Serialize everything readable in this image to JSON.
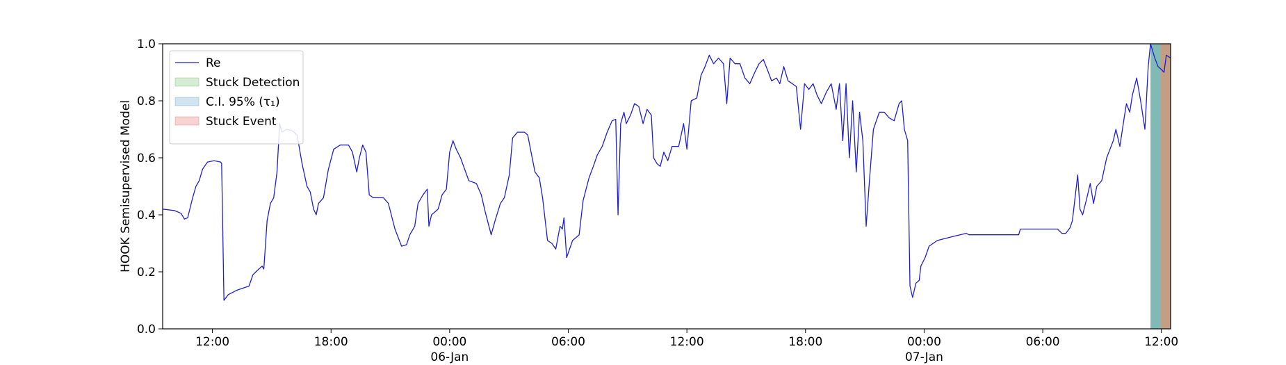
{
  "chart_data": {
    "type": "line",
    "ylabel": "HOOK Semisupervised Model",
    "xlim": [
      "1900-01-05 09:29",
      "1900-01-07 12:28"
    ],
    "xticks": [
      {
        "value": "1900-01-05 12:00",
        "label": "12:00"
      },
      {
        "value": "1900-01-05 18:00",
        "label": "18:00"
      },
      {
        "value": "1900-01-06 00:00",
        "label": "00:00\n06-Jan\n1900"
      },
      {
        "value": "1900-01-06 06:00",
        "label": "06:00"
      },
      {
        "value": "1900-01-06 12:00",
        "label": "12:00"
      },
      {
        "value": "1900-01-06 18:00",
        "label": "18:00"
      },
      {
        "value": "1900-01-07 00:00",
        "label": "00:00\n07-Jan"
      },
      {
        "value": "1900-01-07 06:00",
        "label": "06:00"
      },
      {
        "value": "1900-01-07 12:00",
        "label": "12:00"
      }
    ],
    "ylim": [
      0,
      1
    ],
    "yticks": [
      {
        "value": 0,
        "label": "0.0"
      },
      0.2,
      0.4,
      0.6,
      0.8,
      {
        "value": 1,
        "label": "1.0"
      }
    ],
    "grid": false,
    "legend": "upper left",
    "series": [
      {
        "name": "Re",
        "color": "#1f1fd0",
        "x": [
          "1900-01-05 09:29",
          "1900-01-05 10:05",
          "1900-01-05 10:25",
          "1900-01-05 10:35",
          "1900-01-05 10:45",
          "1900-01-05 11:00",
          "1900-01-05 11:10",
          "1900-01-05 11:20",
          "1900-01-05 11:30",
          "1900-01-05 11:45",
          "1900-01-05 12:05",
          "1900-01-05 12:25",
          "1900-01-05 12:28",
          "1900-01-05 12:35",
          "1900-01-05 12:48",
          "1900-01-05 13:13",
          "1900-01-05 13:51",
          "1900-01-05 14:03",
          "1900-01-05 14:21",
          "1900-01-05 14:31",
          "1900-01-05 14:36",
          "1900-01-05 14:46",
          "1900-01-05 14:56",
          "1900-01-05 15:06",
          "1900-01-05 15:16",
          "1900-01-05 15:24",
          "1900-01-05 15:31",
          "1900-01-05 15:44",
          "1900-01-05 16:02",
          "1900-01-05 16:17",
          "1900-01-05 16:32",
          "1900-01-05 16:47",
          "1900-01-05 16:57",
          "1900-01-05 17:07",
          "1900-01-05 17:15",
          "1900-01-05 17:22",
          "1900-01-05 17:37",
          "1900-01-05 17:52",
          "1900-01-05 18:08",
          "1900-01-05 18:28",
          "1900-01-05 18:53",
          "1900-01-05 19:05",
          "1900-01-05 19:18",
          "1900-01-05 19:26",
          "1900-01-05 19:36",
          "1900-01-05 19:46",
          "1900-01-05 19:56",
          "1900-01-05 20:08",
          "1900-01-05 20:39",
          "1900-01-05 20:54",
          "1900-01-05 21:14",
          "1900-01-05 21:34",
          "1900-01-05 21:49",
          "1900-01-05 21:59",
          "1900-01-05 22:14",
          "1900-01-05 22:24",
          "1900-01-05 22:39",
          "1900-01-05 22:52",
          "1900-01-05 22:57",
          "1900-01-05 23:05",
          "1900-01-05 23:25",
          "1900-01-05 23:37",
          "1900-01-05 23:50",
          "1900-01-06 00:00",
          "1900-01-06 00:10",
          "1900-01-06 00:20",
          "1900-01-06 00:33",
          "1900-01-06 00:58",
          "1900-01-06 01:21",
          "1900-01-06 01:36",
          "1900-01-06 01:48",
          "1900-01-06 02:06",
          "1900-01-06 02:18",
          "1900-01-06 02:34",
          "1900-01-06 02:46",
          "1900-01-06 03:01",
          "1900-01-06 03:11",
          "1900-01-06 03:26",
          "1900-01-06 03:47",
          "1900-01-06 03:57",
          "1900-01-06 04:07",
          "1900-01-06 04:19",
          "1900-01-06 04:32",
          "1900-01-06 04:42",
          "1900-01-06 04:57",
          "1900-01-06 05:10",
          "1900-01-06 05:22",
          "1900-01-06 05:35",
          "1900-01-06 05:42",
          "1900-01-06 05:47",
          "1900-01-06 05:55",
          "1900-01-06 06:13",
          "1900-01-06 06:33",
          "1900-01-06 06:45",
          "1900-01-06 07:03",
          "1900-01-06 07:16",
          "1900-01-06 07:28",
          "1900-01-06 07:43",
          "1900-01-06 07:58",
          "1900-01-06 08:13",
          "1900-01-06 08:24",
          "1900-01-06 08:31",
          "1900-01-06 08:39",
          "1900-01-06 08:49",
          "1900-01-06 08:56",
          "1900-01-06 09:09",
          "1900-01-06 09:21",
          "1900-01-06 09:34",
          "1900-01-06 09:47",
          "1900-01-06 09:59",
          "1900-01-06 10:12",
          "1900-01-06 10:19",
          "1900-01-06 10:29",
          "1900-01-06 10:39",
          "1900-01-06 10:50",
          "1900-01-06 11:02",
          "1900-01-06 11:15",
          "1900-01-06 11:35",
          "1900-01-06 11:50",
          "1900-01-06 12:00",
          "1900-01-06 12:13",
          "1900-01-06 12:30",
          "1900-01-06 12:43",
          "1900-01-06 12:55",
          "1900-01-06 13:08",
          "1900-01-06 13:21",
          "1900-01-06 13:36",
          "1900-01-06 13:51",
          "1900-01-06 14:01",
          "1900-01-06 14:11",
          "1900-01-06 14:26",
          "1900-01-06 14:41",
          "1900-01-06 14:56",
          "1900-01-06 15:11",
          "1900-01-06 15:26",
          "1900-01-06 15:39",
          "1900-01-06 15:52",
          "1900-01-06 16:04",
          "1900-01-06 16:17",
          "1900-01-06 16:32",
          "1900-01-06 16:42",
          "1900-01-06 16:54",
          "1900-01-06 17:07",
          "1900-01-06 17:20",
          "1900-01-06 17:32",
          "1900-01-06 17:45",
          "1900-01-06 17:57",
          "1900-01-06 18:10",
          "1900-01-06 18:23",
          "1900-01-06 18:35",
          "1900-01-06 18:48",
          "1900-01-06 19:03",
          "1900-01-06 19:18",
          "1900-01-06 19:33",
          "1900-01-06 19:43",
          "1900-01-06 19:53",
          "1900-01-06 20:03",
          "1900-01-06 20:13",
          "1900-01-06 20:23",
          "1900-01-06 20:34",
          "1900-01-06 20:44",
          "1900-01-06 20:54",
          "1900-01-06 21:04",
          "1900-01-06 21:14",
          "1900-01-06 21:26",
          "1900-01-06 21:44",
          "1900-01-06 21:59",
          "1900-01-06 22:14",
          "1900-01-06 22:29",
          "1900-01-06 22:44",
          "1900-01-06 22:52",
          "1900-01-06 23:00",
          "1900-01-06 23:10",
          "1900-01-06 23:17",
          "1900-01-06 23:25",
          "1900-01-06 23:35",
          "1900-01-06 23:45",
          "1900-01-06 23:50",
          "1900-01-07 00:03",
          "1900-01-07 00:15",
          "1900-01-07 00:40",
          "1900-01-07 01:31",
          "1900-01-07 02:08",
          "1900-01-07 02:16",
          "1900-01-07 03:36",
          "1900-01-07 04:47",
          "1900-01-07 04:52",
          "1900-01-07 06:45",
          "1900-01-07 06:58",
          "1900-01-07 07:10",
          "1900-01-07 07:23",
          "1900-01-07 07:30",
          "1900-01-07 07:38",
          "1900-01-07 07:46",
          "1900-01-07 07:53",
          "1900-01-07 08:01",
          "1900-01-07 08:14",
          "1900-01-07 08:24",
          "1900-01-07 08:34",
          "1900-01-07 08:44",
          "1900-01-07 08:59",
          "1900-01-07 09:14",
          "1900-01-07 09:24",
          "1900-01-07 09:34",
          "1900-01-07 09:42",
          "1900-01-07 09:54",
          "1900-01-07 10:07",
          "1900-01-07 10:14",
          "1900-01-07 10:24",
          "1900-01-07 10:32",
          "1900-01-07 10:45",
          "1900-01-07 10:57",
          "1900-01-07 11:10",
          "1900-01-07 11:20",
          "1900-01-07 11:27",
          "1900-01-07 11:40",
          "1900-01-07 11:50",
          "1900-01-07 12:00",
          "1900-01-07 12:08",
          "1900-01-07 12:15",
          "1900-01-07 12:28"
        ],
        "values": [
          0.42,
          0.415,
          0.405,
          0.385,
          0.39,
          0.46,
          0.5,
          0.52,
          0.56,
          0.585,
          0.59,
          0.585,
          0.58,
          0.1,
          0.12,
          0.135,
          0.15,
          0.19,
          0.21,
          0.22,
          0.21,
          0.38,
          0.44,
          0.46,
          0.55,
          0.72,
          0.69,
          0.7,
          0.695,
          0.68,
          0.58,
          0.5,
          0.48,
          0.42,
          0.4,
          0.44,
          0.46,
          0.56,
          0.63,
          0.645,
          0.645,
          0.62,
          0.55,
          0.6,
          0.645,
          0.62,
          0.47,
          0.46,
          0.46,
          0.44,
          0.35,
          0.29,
          0.295,
          0.33,
          0.36,
          0.44,
          0.47,
          0.49,
          0.36,
          0.4,
          0.42,
          0.47,
          0.49,
          0.62,
          0.66,
          0.63,
          0.6,
          0.52,
          0.51,
          0.47,
          0.41,
          0.33,
          0.38,
          0.44,
          0.46,
          0.54,
          0.67,
          0.69,
          0.69,
          0.68,
          0.62,
          0.55,
          0.53,
          0.46,
          0.31,
          0.3,
          0.28,
          0.36,
          0.35,
          0.39,
          0.25,
          0.31,
          0.33,
          0.45,
          0.53,
          0.57,
          0.61,
          0.64,
          0.69,
          0.73,
          0.735,
          0.4,
          0.72,
          0.76,
          0.72,
          0.75,
          0.79,
          0.78,
          0.72,
          0.77,
          0.75,
          0.6,
          0.58,
          0.57,
          0.62,
          0.59,
          0.64,
          0.64,
          0.72,
          0.63,
          0.8,
          0.81,
          0.89,
          0.92,
          0.96,
          0.93,
          0.95,
          0.93,
          0.79,
          0.95,
          0.93,
          0.93,
          0.88,
          0.86,
          0.9,
          0.93,
          0.945,
          0.91,
          0.87,
          0.88,
          0.86,
          0.92,
          0.87,
          0.86,
          0.85,
          0.7,
          0.86,
          0.84,
          0.86,
          0.82,
          0.79,
          0.83,
          0.86,
          0.77,
          0.86,
          0.66,
          0.86,
          0.6,
          0.8,
          0.55,
          0.76,
          0.66,
          0.36,
          0.52,
          0.7,
          0.76,
          0.76,
          0.74,
          0.73,
          0.79,
          0.8,
          0.7,
          0.66,
          0.15,
          0.11,
          0.16,
          0.17,
          0.22,
          0.25,
          0.29,
          0.31,
          0.325,
          0.335,
          0.33,
          0.33,
          0.33,
          0.35,
          0.35,
          0.335,
          0.335,
          0.355,
          0.38,
          0.46,
          0.54,
          0.42,
          0.4,
          0.46,
          0.51,
          0.44,
          0.5,
          0.52,
          0.6,
          0.63,
          0.66,
          0.7,
          0.64,
          0.74,
          0.79,
          0.76,
          0.82,
          0.88,
          0.8,
          0.7,
          0.92,
          1.0,
          0.95,
          0.92,
          0.91,
          0.9,
          0.96,
          0.95
        ]
      }
    ],
    "spans": [
      {
        "name": "Stuck Detection",
        "color": "#2ca02c",
        "start": "1900-01-07 11:27",
        "end": "1900-01-07 12:28"
      },
      {
        "name": "C.I. 95% (τ₁)",
        "color": "#1f77b4",
        "start": "1900-01-07 11:27",
        "end": "1900-01-07 11:57"
      },
      {
        "name": "Stuck Event",
        "color": "#d62728",
        "start": "1900-01-07 11:57",
        "end": "1900-01-07 12:28"
      }
    ]
  }
}
